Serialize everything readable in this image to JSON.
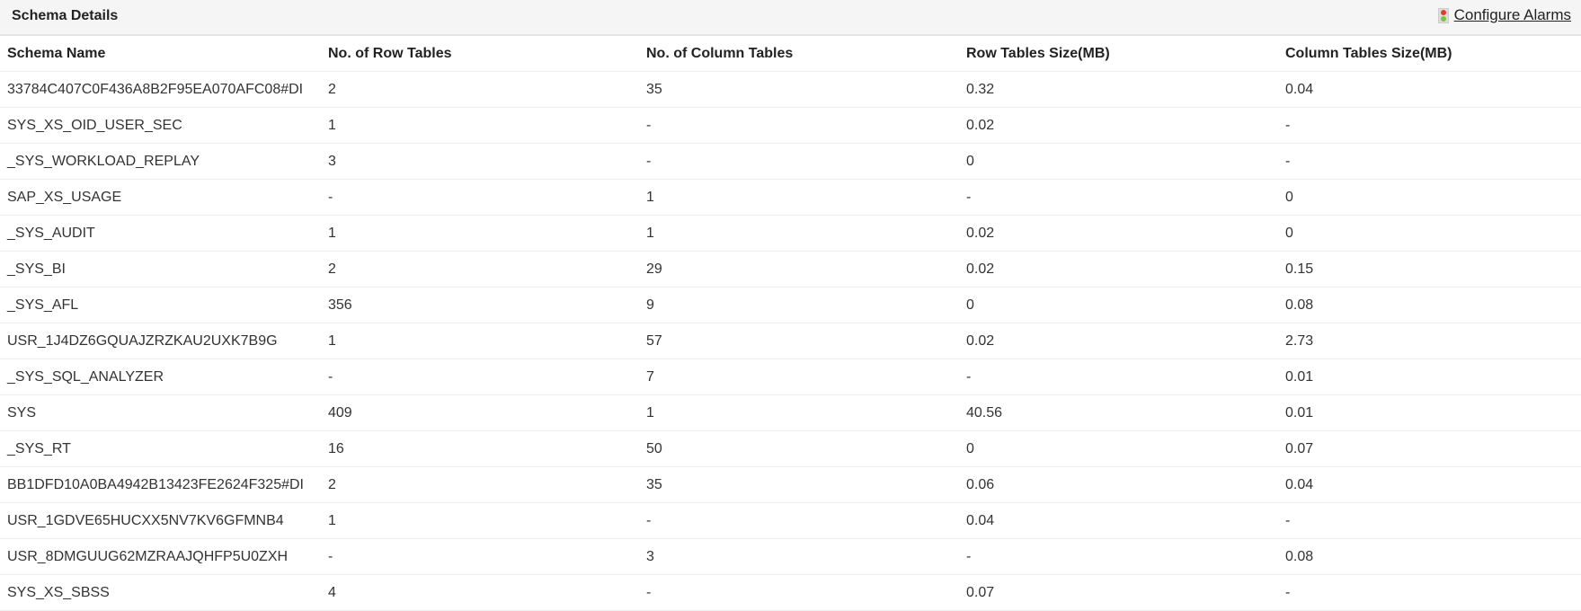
{
  "header": {
    "title": "Schema Details",
    "configure_alarms": "Configure Alarms",
    "alarm_icon": "traffic-light-icon"
  },
  "table": {
    "columns": [
      "Schema Name",
      "No. of Row Tables",
      "No. of Column Tables",
      "Row Tables Size(MB)",
      "Column Tables Size(MB)"
    ],
    "rows": [
      [
        "33784C407C0F436A8B2F95EA070AFC08#DI",
        "2",
        "35",
        "0.32",
        "0.04"
      ],
      [
        "SYS_XS_OID_USER_SEC",
        "1",
        "-",
        "0.02",
        "-"
      ],
      [
        "_SYS_WORKLOAD_REPLAY",
        "3",
        "-",
        "0",
        "-"
      ],
      [
        "SAP_XS_USAGE",
        "-",
        "1",
        "-",
        "0"
      ],
      [
        "_SYS_AUDIT",
        "1",
        "1",
        "0.02",
        "0"
      ],
      [
        "_SYS_BI",
        "2",
        "29",
        "0.02",
        "0.15"
      ],
      [
        "_SYS_AFL",
        "356",
        "9",
        "0",
        "0.08"
      ],
      [
        "USR_1J4DZ6GQUAJZRZKAU2UXK7B9G",
        "1",
        "57",
        "0.02",
        "2.73"
      ],
      [
        "_SYS_SQL_ANALYZER",
        "-",
        "7",
        "-",
        "0.01"
      ],
      [
        "SYS",
        "409",
        "1",
        "40.56",
        "0.01"
      ],
      [
        "_SYS_RT",
        "16",
        "50",
        "0",
        "0.07"
      ],
      [
        "BB1DFD10A0BA4942B13423FE2624F325#DI",
        "2",
        "35",
        "0.06",
        "0.04"
      ],
      [
        "USR_1GDVE65HUCXX5NV7KV6GFMNB4",
        "1",
        "-",
        "0.04",
        "-"
      ],
      [
        "USR_8DMGUUG62MZRAAJQHFP5U0ZXH",
        "-",
        "3",
        "-",
        "0.08"
      ],
      [
        "SYS_XS_SBSS",
        "4",
        "-",
        "0.07",
        "-"
      ]
    ]
  }
}
